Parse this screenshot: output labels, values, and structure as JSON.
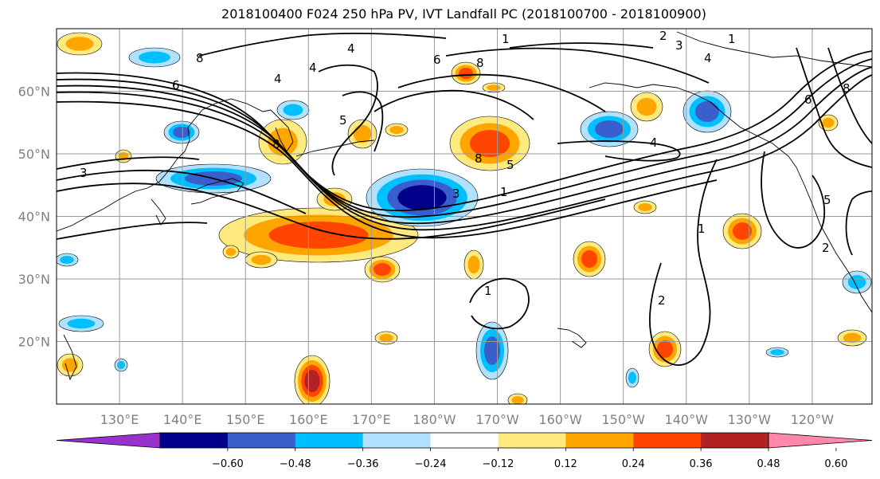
{
  "title": "2018100400 F024 250 hPa PV, IVT Landfall PC (2018100700 - 2018100900)",
  "map": {
    "lat_labels": [
      {
        "label": "60°N",
        "lat": 60
      },
      {
        "label": "50°N",
        "lat": 50
      },
      {
        "label": "40°N",
        "lat": 40
      },
      {
        "label": "30°N",
        "lat": 30
      },
      {
        "label": "20°N",
        "lat": 20
      }
    ],
    "lon_labels": [
      {
        "label": "130°E",
        "lon": 130
      },
      {
        "label": "140°E",
        "lon": 140
      },
      {
        "label": "150°E",
        "lon": 150
      },
      {
        "label": "160°E",
        "lon": 160
      },
      {
        "label": "170°E",
        "lon": 170
      },
      {
        "label": "180°W",
        "lon": 180
      },
      {
        "label": "170°W",
        "lon": 190
      },
      {
        "label": "160°W",
        "lon": 200
      },
      {
        "label": "150°W",
        "lon": 210
      },
      {
        "label": "140°W",
        "lon": 220
      },
      {
        "label": "130°W",
        "lon": 230
      },
      {
        "label": "120°W",
        "lon": 240
      }
    ],
    "contour_labels": [
      "8",
      "6",
      "4",
      "3",
      "2",
      "1",
      "5"
    ]
  },
  "colorbar": {
    "colors": [
      "#9932cc",
      "#00008b",
      "#3a5fcd",
      "#00bfff",
      "#b0e2ff",
      "#ffffff",
      "#ffea80",
      "#ffa500",
      "#ff4500",
      "#b22222",
      "#ff88aa"
    ],
    "tick_labels": [
      "−0.60",
      "−0.48",
      "−0.36",
      "−0.24",
      "−0.12",
      "0.12",
      "0.24",
      "0.36",
      "0.48",
      "0.60"
    ]
  },
  "anomaly_colors": {
    "dark_blue": "#00008b",
    "mid_blue": "#3a5fcd",
    "light_blue": "#00bfff",
    "pale_blue": "#b0e2ff",
    "pale_yellow": "#ffea80",
    "orange": "#ffa500",
    "red_orange": "#ff4500",
    "dark_red": "#b22222"
  }
}
